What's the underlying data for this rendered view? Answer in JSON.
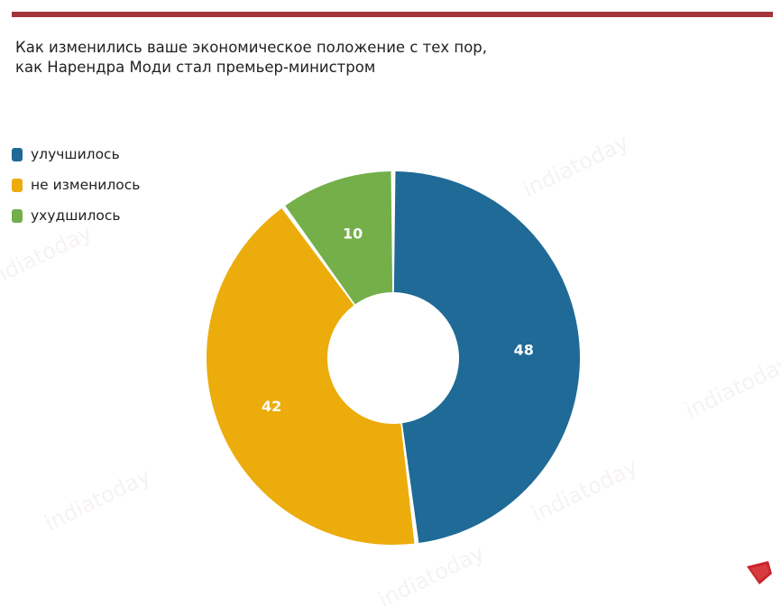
{
  "title_line1": "Как изменились ваше экономическое положение с тех пор,",
  "title_line2": "как Нарендра Моди стал премьер-министром",
  "colors": {
    "accent_bar": "#a3343a",
    "improved": "#1f6a96",
    "unchanged": "#ecac0c",
    "worsened": "#74af4a"
  },
  "chart_data": {
    "type": "pie",
    "donut": true,
    "title": "Как изменились ваше экономическое положение с тех пор, как Нарендра Моди стал премьер-министром",
    "legend_position": "left",
    "slices": [
      {
        "label": "улучшилось",
        "value": 48,
        "color": "#1f6a96"
      },
      {
        "label": "не изменилось",
        "value": 42,
        "color": "#ecac0c"
      },
      {
        "label": "ухудшилось",
        "value": 10,
        "color": "#74af4a"
      }
    ]
  },
  "legend": [
    {
      "label": "улучшилось",
      "color": "#1f6a96"
    },
    {
      "label": "не изменилось",
      "color": "#ecac0c"
    },
    {
      "label": "ухудшилось",
      "color": "#74af4a"
    }
  ],
  "watermark_text": "indiatoday",
  "logo_icon": "india-today-group-logo-icon"
}
